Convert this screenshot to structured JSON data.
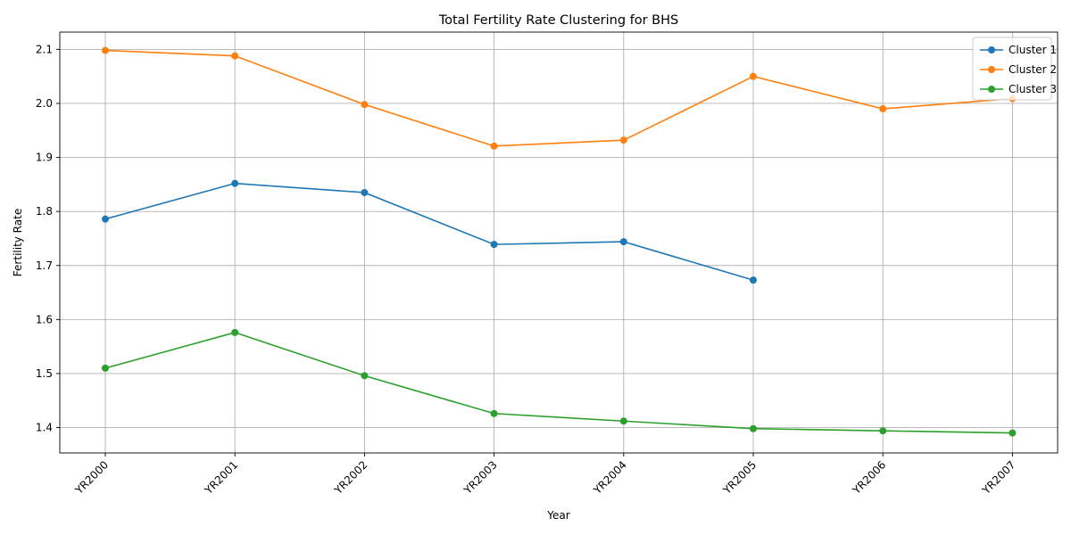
{
  "chart_data": {
    "type": "line",
    "title": "Total Fertility Rate Clustering for BHS",
    "xlabel": "Year",
    "ylabel": "Fertility Rate",
    "categories": [
      "YR2000",
      "YR2001",
      "YR2002",
      "YR2003",
      "YR2004",
      "YR2005",
      "YR2006",
      "YR2007"
    ],
    "yticks": [
      "1.4",
      "1.5",
      "1.6",
      "1.7",
      "1.8",
      "1.9",
      "2.0",
      "2.1"
    ],
    "ylim": [
      1.353,
      2.132
    ],
    "grid": true,
    "legend_position": "top-right",
    "series": [
      {
        "name": "Cluster 1",
        "color": "#1f77b4",
        "values": [
          1.786,
          1.852,
          1.835,
          1.739,
          1.744,
          1.673,
          null,
          null
        ]
      },
      {
        "name": "Cluster 2",
        "color": "#ff7f0e",
        "values": [
          2.098,
          2.088,
          1.998,
          1.921,
          1.932,
          2.05,
          1.99,
          2.009
        ]
      },
      {
        "name": "Cluster 3",
        "color": "#2ca02c",
        "values": [
          1.51,
          1.576,
          1.496,
          1.426,
          1.412,
          1.398,
          1.394,
          1.39
        ]
      }
    ]
  }
}
